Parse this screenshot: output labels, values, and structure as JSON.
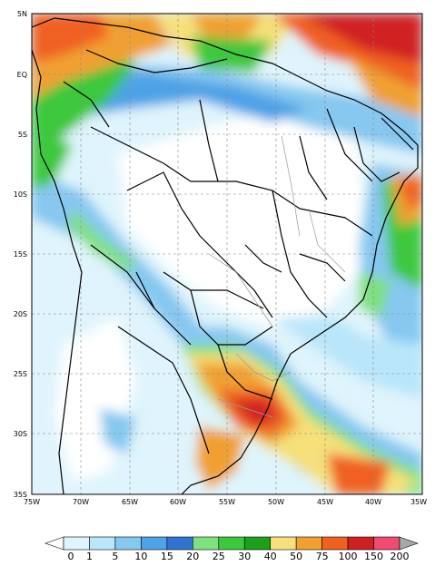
{
  "map": {
    "lat_labels": [
      "5N",
      "EQ",
      "5S",
      "10S",
      "15S",
      "20S",
      "25S",
      "30S",
      "35S"
    ],
    "lon_labels": [
      "75W",
      "70W",
      "65W",
      "60W",
      "55W",
      "50W",
      "45W",
      "40W",
      "35W"
    ],
    "extent": {
      "lon_min": -75,
      "lon_max": -35,
      "lat_min": -35,
      "lat_max": 5
    },
    "gridlines": "dashed"
  },
  "colorbar": {
    "levels": [
      "0",
      "1",
      "5",
      "10",
      "15",
      "20",
      "25",
      "30",
      "40",
      "50",
      "75",
      "100",
      "150",
      "200"
    ],
    "colors": [
      "#ffffff",
      "#dff4fc",
      "#b9e6fa",
      "#86c8f0",
      "#4ea2e6",
      "#2f74d2",
      "#7fe07f",
      "#3cc83c",
      "#1aa01a",
      "#f5e07a",
      "#f0a030",
      "#f06020",
      "#d02020",
      "#f04a70",
      "#a8a8a8"
    ]
  }
}
